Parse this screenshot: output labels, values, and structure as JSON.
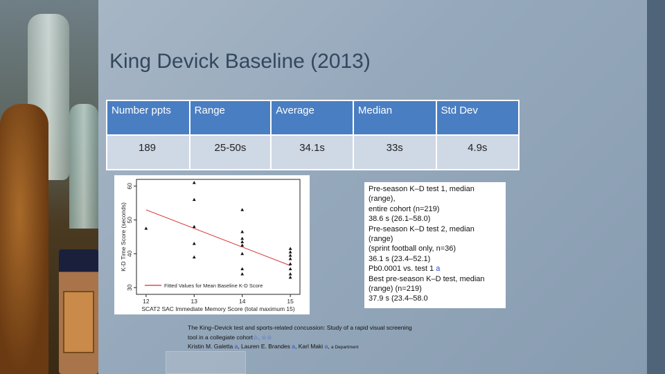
{
  "slide": {
    "title": "King Devick Baseline (2013)"
  },
  "stats_table": {
    "headers": [
      "Number ppts",
      "Range",
      "Average",
      "Median",
      "Std Dev"
    ],
    "values": [
      "189",
      "25-50s",
      "34.1s",
      "33s",
      "4.9s"
    ],
    "colors": {
      "header_bg": "#4a7ec2",
      "cell_bg": "#cfd8e5"
    }
  },
  "chart_data": {
    "type": "scatter",
    "xlabel": "SCAT2 SAC Immediate Memory Score (total maximum 15)",
    "ylabel": "K-D Time Score (seconds)",
    "xlim": [
      11.8,
      15.2
    ],
    "ylim": [
      28,
      62
    ],
    "xticks": [
      "12",
      "13",
      "14",
      "15"
    ],
    "yticks": [
      "30",
      "40",
      "50",
      "60"
    ],
    "series": [
      {
        "name": "",
        "marker": "triangle",
        "points": [
          [
            12,
            47.5
          ],
          [
            13,
            61
          ],
          [
            13,
            56
          ],
          [
            13,
            48
          ],
          [
            13,
            43
          ],
          [
            13,
            39
          ],
          [
            14,
            53
          ],
          [
            14,
            46.5
          ],
          [
            14,
            44.5
          ],
          [
            14,
            43.5
          ],
          [
            14,
            42.5
          ],
          [
            14,
            40
          ],
          [
            14,
            35.5
          ],
          [
            14,
            34
          ],
          [
            15,
            41.5
          ],
          [
            15,
            40.5
          ],
          [
            15,
            39.5
          ],
          [
            15,
            38.5
          ],
          [
            15,
            37
          ],
          [
            15,
            35.5
          ],
          [
            15,
            34
          ],
          [
            15,
            33
          ]
        ]
      },
      {
        "name": "Fitted Values for Mean Baseline K-D Score",
        "type": "line",
        "color": "#d42a2a",
        "points": [
          [
            12,
            53
          ],
          [
            15,
            36.5
          ]
        ]
      }
    ],
    "legend": "bottom-left"
  },
  "quote_box": {
    "lines": [
      "Pre-season K–D test 1, median",
      "(range),",
      "entire cohort (n=219)",
      "38.6 s (26.1–58.0)",
      "Pre-season K–D test 2, median",
      "(range)",
      "(sprint football only, n=36)",
      "36.1 s (23.4–52.1)",
      "Pb0.0001 vs. test 1",
      "Best pre-season K–D test, median",
      "(range) (n=219)",
      "37.9 s (23.4–58.0"
    ],
    "ref_marker": "a"
  },
  "citation": {
    "line1": "The King–Devick test and sports-related concussion: Study of a rapid visual screening",
    "line2": "tool in a collegiate cohort",
    "stars": "☆, ☆☆",
    "authors": [
      {
        "name": "Kristin M. Galetta",
        "ref": "a"
      },
      {
        "name": "Lauren E. Brandes",
        "ref": "a"
      },
      {
        "name": "Karl Maki",
        "ref": "a"
      }
    ],
    "affiliation": "a Department"
  }
}
